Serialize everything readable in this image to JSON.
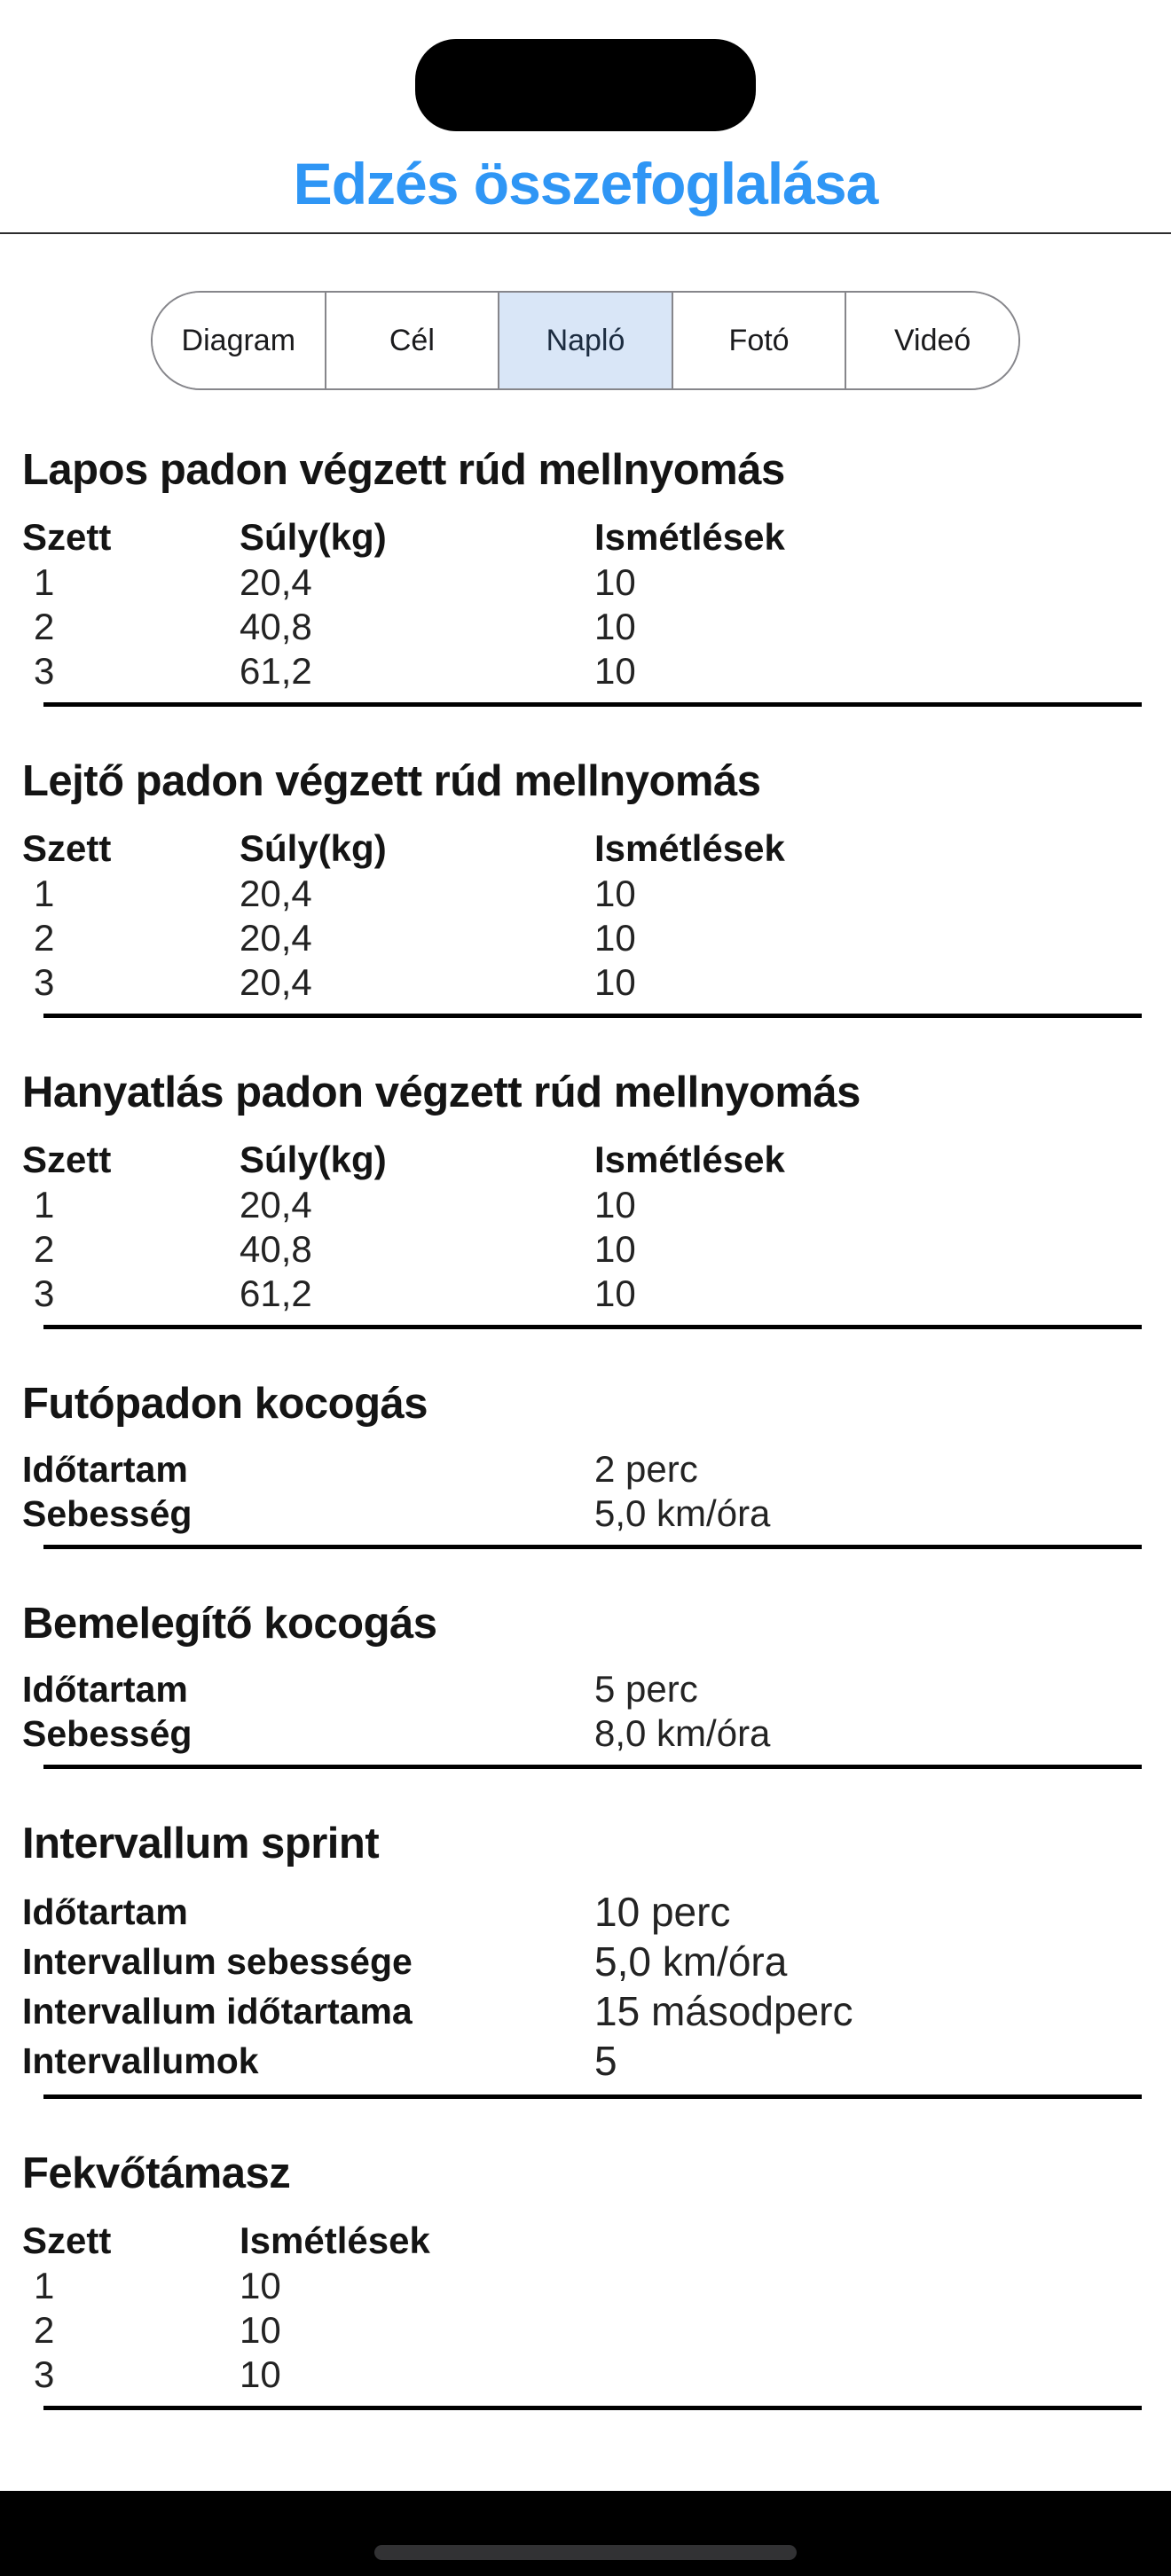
{
  "header": {
    "title": "Edzés összefoglalása",
    "title_color": "#2f96f5"
  },
  "tabs": {
    "selected": "Napló",
    "selected_bg": "#d9e6f7",
    "items": [
      {
        "label": "Diagram"
      },
      {
        "label": "Cél"
      },
      {
        "label": "Napló"
      },
      {
        "label": "Fotó"
      },
      {
        "label": "Videó"
      }
    ]
  },
  "sections": [
    {
      "type": "table",
      "title": "Lapos padon végzett rúd mellnyomás",
      "columns": [
        "Szett",
        "Súly(kg)",
        "Ismétlések"
      ],
      "rows": [
        [
          "1",
          "20,4",
          "10"
        ],
        [
          "2",
          "40,8",
          "10"
        ],
        [
          "3",
          "61,2",
          "10"
        ]
      ]
    },
    {
      "type": "table",
      "title": "Lejtő padon végzett rúd mellnyomás",
      "columns": [
        "Szett",
        "Súly(kg)",
        "Ismétlések"
      ],
      "rows": [
        [
          "1",
          "20,4",
          "10"
        ],
        [
          "2",
          "20,4",
          "10"
        ],
        [
          "3",
          "20,4",
          "10"
        ]
      ]
    },
    {
      "type": "table",
      "title": "Hanyatlás padon végzett rúd mellnyomás",
      "columns": [
        "Szett",
        "Súly(kg)",
        "Ismétlések"
      ],
      "rows": [
        [
          "1",
          "20,4",
          "10"
        ],
        [
          "2",
          "40,8",
          "10"
        ],
        [
          "3",
          "61,2",
          "10"
        ]
      ]
    },
    {
      "type": "kv",
      "title": "Futópadon kocogás",
      "pairs": [
        {
          "label": "Időtartam",
          "value": "2 perc"
        },
        {
          "label": "Sebesség",
          "value": "5,0 km/óra"
        }
      ]
    },
    {
      "type": "kv",
      "title": "Bemelegítő kocogás",
      "pairs": [
        {
          "label": "Időtartam",
          "value": "5 perc"
        },
        {
          "label": "Sebesség",
          "value": "8,0 km/óra"
        }
      ]
    },
    {
      "type": "kv",
      "title": "Intervallum sprint",
      "large": true,
      "pairs": [
        {
          "label": "Időtartam",
          "value": "10 perc"
        },
        {
          "label": "Intervallum sebessége",
          "value": "5,0 km/óra"
        },
        {
          "label": "Intervallum időtartama",
          "value": "15 másodperc"
        },
        {
          "label": "Intervallumok",
          "value": "5"
        }
      ]
    },
    {
      "type": "table",
      "title": "Fekvőtámasz",
      "columns": [
        "Szett",
        "Ismétlések"
      ],
      "rows": [
        [
          "1",
          "10"
        ],
        [
          "2",
          "10"
        ],
        [
          "3",
          "10"
        ]
      ]
    }
  ],
  "colors": {
    "accent": "#2f96f5",
    "tab_selected_bg": "#d9e6f7",
    "divider": "#000000",
    "bottom_bar": "#000000",
    "home_indicator": "#323234"
  }
}
